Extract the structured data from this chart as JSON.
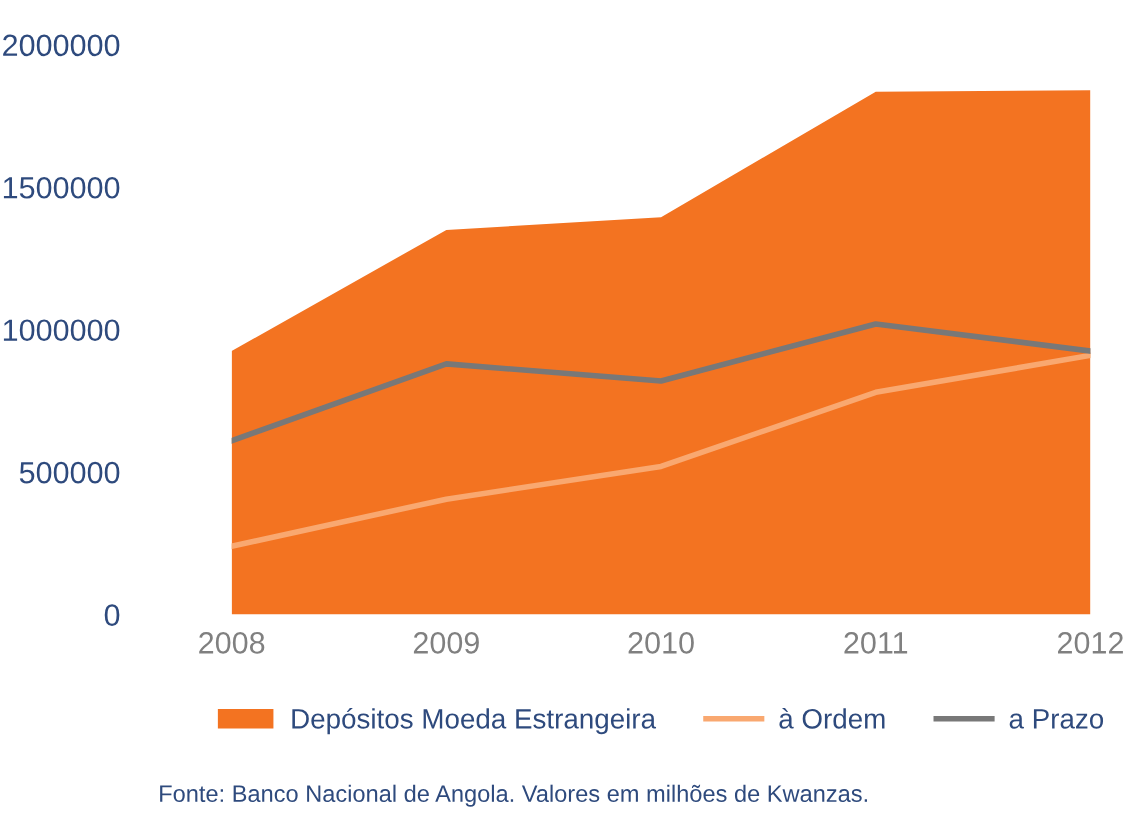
{
  "chart_data": {
    "type": "area",
    "categories": [
      "2008",
      "2009",
      "2010",
      "2011",
      "2012"
    ],
    "series": [
      {
        "name": "Depósitos Moeda Estrangeira",
        "color": "#f37321",
        "values": [
          925000,
          1350000,
          1395000,
          1835000,
          1840000
        ]
      },
      {
        "name": "à Ordem",
        "type": "line",
        "color": "#f9a870",
        "values": [
          240000,
          405000,
          520000,
          780000,
          910000
        ]
      },
      {
        "name": "a Prazo",
        "type": "line",
        "color": "#787878",
        "values": [
          610000,
          880000,
          820000,
          1020000,
          925000
        ]
      }
    ],
    "ylim": [
      0,
      2000000
    ],
    "yticks": [
      0,
      500000,
      1000000,
      1500000,
      2000000
    ],
    "grid": false,
    "legend": "bottom",
    "annotations": [
      "Fonte: Banco Nacional de Angola. Valores em milhões de Kwanzas."
    ]
  }
}
